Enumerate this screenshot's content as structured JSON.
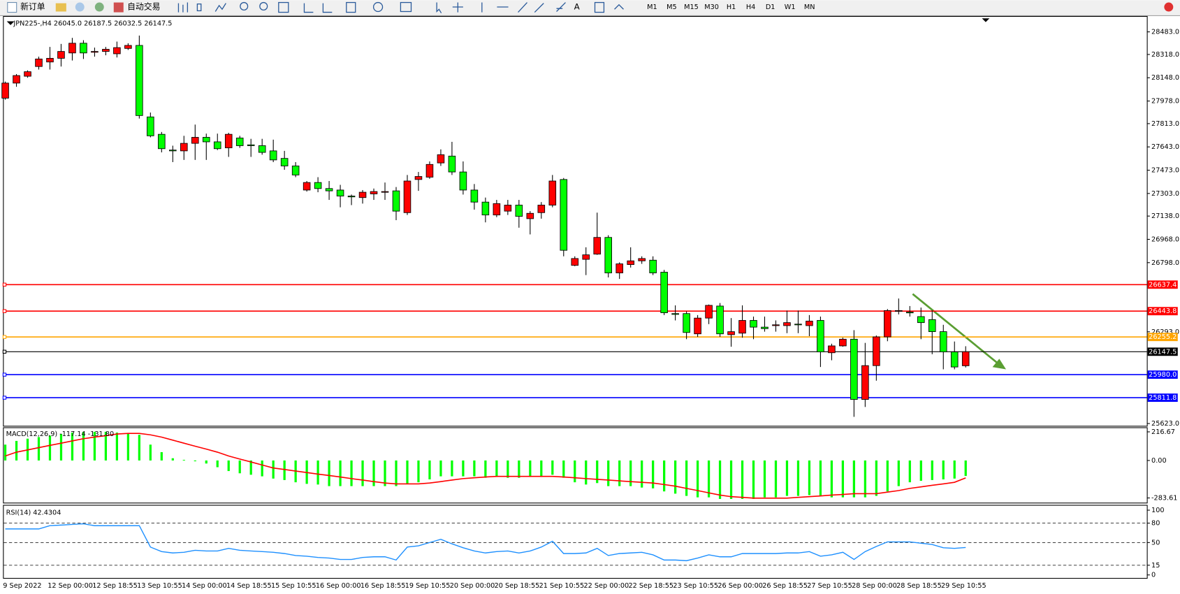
{
  "toolbar": {
    "new_order": "新订单",
    "auto_trade": "自动交易",
    "text_tool": "A",
    "timeframes": [
      "M1",
      "M5",
      "M15",
      "M30",
      "H1",
      "H4",
      "D1",
      "W1",
      "MN"
    ]
  },
  "chart_data": [
    {
      "type": "candlestick",
      "title": "JPN225-,H4  26045.0 26187.5 26032.5 26147.5",
      "up_color": "#ff0000",
      "down_color": "#00ff00",
      "categories": [
        "9 Sep 2022",
        null,
        null,
        null,
        "12 Sep 00:00",
        null,
        null,
        null,
        "12 Sep 18:55",
        null,
        null,
        null,
        "13 Sep 10:55",
        null,
        null,
        null,
        "14 Sep 00:00",
        null,
        null,
        null,
        "14 Sep 18:55",
        null,
        null,
        null,
        "15 Sep 10:55",
        null,
        null,
        null,
        "16 Sep 00:00",
        null,
        null,
        null,
        "16 Sep 18:55",
        null,
        null,
        null,
        "19 Sep 10:55",
        null,
        null,
        null,
        "20 Sep 00:00",
        null,
        null,
        null,
        "20 Sep 18:55",
        null,
        null,
        null,
        "21 Sep 10:55",
        null,
        null,
        null,
        "22 Sep 00:00",
        null,
        null,
        null,
        "22 Sep 18:55",
        null,
        null,
        null,
        "23 Sep 10:55",
        null,
        null,
        null,
        "26 Sep 00:00",
        null,
        null,
        null,
        "26 Sep 18:55",
        null,
        null,
        null,
        "27 Sep 10:55",
        null,
        null,
        null,
        "28 Sep 00:00",
        null,
        null,
        null,
        "28 Sep 18:55",
        null,
        null,
        null,
        "29 Sep 10:55",
        null,
        null
      ],
      "ohlc": [
        [
          27999,
          28120,
          27988,
          28109
        ],
        [
          28109,
          28175,
          28082,
          28164
        ],
        [
          28159,
          28202,
          28148,
          28192
        ],
        [
          28230,
          28302,
          28208,
          28285
        ],
        [
          28263,
          28373,
          28208,
          28290
        ],
        [
          28290,
          28395,
          28230,
          28340
        ],
        [
          28329,
          28439,
          28274,
          28400
        ],
        [
          28400,
          28422,
          28285,
          28329
        ],
        [
          28334,
          28368,
          28302,
          28340
        ],
        [
          28340,
          28373,
          28312,
          28356
        ],
        [
          28323,
          28412,
          28296,
          28368
        ],
        [
          28362,
          28400,
          28351,
          28384
        ],
        [
          28384,
          28456,
          27850,
          27872
        ],
        [
          27862,
          27894,
          27713,
          27724
        ],
        [
          27735,
          27752,
          27603,
          27630
        ],
        [
          27620,
          27652,
          27532,
          27614
        ],
        [
          27614,
          27724,
          27548,
          27669
        ],
        [
          27669,
          27806,
          27548,
          27713
        ],
        [
          27713,
          27740,
          27548,
          27680
        ],
        [
          27680,
          27740,
          27620,
          27630
        ],
        [
          27636,
          27746,
          27570,
          27735
        ],
        [
          27708,
          27724,
          27636,
          27652
        ],
        [
          27658,
          27702,
          27570,
          27652
        ],
        [
          27652,
          27702,
          27586,
          27603
        ],
        [
          27614,
          27696,
          27532,
          27548
        ],
        [
          27559,
          27614,
          27476,
          27504
        ],
        [
          27504,
          27532,
          27422,
          27438
        ],
        [
          27328,
          27394,
          27317,
          27383
        ],
        [
          27383,
          27422,
          27312,
          27339
        ],
        [
          27339,
          27394,
          27256,
          27322
        ],
        [
          27328,
          27366,
          27202,
          27284
        ],
        [
          27284,
          27295,
          27218,
          27278
        ],
        [
          27273,
          27328,
          27229,
          27312
        ],
        [
          27300,
          27339,
          27256,
          27317
        ],
        [
          27312,
          27383,
          27256,
          27317
        ],
        [
          27322,
          27350,
          27108,
          27174
        ],
        [
          27163,
          27438,
          27146,
          27394
        ],
        [
          27405,
          27460,
          27322,
          27427
        ],
        [
          27422,
          27537,
          27410,
          27515
        ],
        [
          27526,
          27625,
          27504,
          27586
        ],
        [
          27576,
          27680,
          27438,
          27460
        ],
        [
          27460,
          27537,
          27295,
          27328
        ],
        [
          27328,
          27372,
          27185,
          27240
        ],
        [
          27240,
          27273,
          27092,
          27146
        ],
        [
          27146,
          27256,
          27130,
          27229
        ],
        [
          27174,
          27256,
          27146,
          27218
        ],
        [
          27218,
          27256,
          27053,
          27136
        ],
        [
          27119,
          27174,
          27004,
          27158
        ],
        [
          27163,
          27240,
          27119,
          27218
        ],
        [
          27218,
          27438,
          27202,
          27394
        ],
        [
          27405,
          27416,
          26844,
          26888
        ],
        [
          26778,
          26844,
          26772,
          26828
        ],
        [
          26822,
          26910,
          26707,
          26855
        ],
        [
          26860,
          27163,
          26855,
          26982
        ],
        [
          26982,
          26998,
          26690,
          26723
        ],
        [
          26723,
          26800,
          26679,
          26789
        ],
        [
          26784,
          26910,
          26762,
          26811
        ],
        [
          26811,
          26844,
          26789,
          26828
        ],
        [
          26816,
          26844,
          26707,
          26723
        ],
        [
          26728,
          26745,
          26415,
          26432
        ],
        [
          26426,
          26486,
          26376,
          26420
        ],
        [
          26426,
          26442,
          26239,
          26288
        ],
        [
          26278,
          26415,
          26256,
          26393
        ],
        [
          26393,
          26492,
          26349,
          26486
        ],
        [
          26481,
          26503,
          26256,
          26278
        ],
        [
          26272,
          26393,
          26184,
          26294
        ],
        [
          26283,
          26486,
          26250,
          26376
        ],
        [
          26376,
          26404,
          26239,
          26327
        ],
        [
          26327,
          26404,
          26294,
          26316
        ],
        [
          26338,
          26376,
          26294,
          26344
        ],
        [
          26338,
          26448,
          26283,
          26360
        ],
        [
          26349,
          26448,
          26283,
          26344
        ],
        [
          26338,
          26415,
          26261,
          26371
        ],
        [
          26376,
          26404,
          26036,
          26146
        ],
        [
          26140,
          26206,
          26085,
          26190
        ],
        [
          26190,
          26250,
          26184,
          26239
        ],
        [
          26239,
          26305,
          25672,
          25799
        ],
        [
          25799,
          26212,
          25744,
          26046
        ],
        [
          26046,
          26266,
          25936,
          26256
        ],
        [
          26256,
          26459,
          26224,
          26448
        ],
        [
          26442,
          26536,
          26420,
          26448
        ],
        [
          26437,
          26481,
          26404,
          26431
        ],
        [
          26404,
          26470,
          26239,
          26360
        ],
        [
          26382,
          26448,
          26129,
          26294
        ],
        [
          26294,
          26344,
          26019,
          26146
        ],
        [
          26146,
          26222,
          26019,
          26036
        ],
        [
          26045.0,
          26187.5,
          26032.5,
          26147.5
        ]
      ],
      "ylim": [
        25606.5,
        28593
      ],
      "yticks": [
        {
          "value": 28483,
          "label": "28483.0"
        },
        {
          "value": 28318,
          "label": "28318.0"
        },
        {
          "value": 28148,
          "label": "28148.0"
        },
        {
          "value": 27978,
          "label": "27978.0"
        },
        {
          "value": 27813,
          "label": "27813.0"
        },
        {
          "value": 27643,
          "label": "27643.0"
        },
        {
          "value": 27473,
          "label": "27473.0"
        },
        {
          "value": 27303,
          "label": "27303.0"
        },
        {
          "value": 27138,
          "label": "27138.0"
        },
        {
          "value": 26968,
          "label": "26968.0"
        },
        {
          "value": 26798,
          "label": "26798.0"
        },
        {
          "value": 26293,
          "label": "26293.0"
        },
        {
          "value": 25623,
          "label": "25623.0"
        }
      ],
      "hlines": [
        {
          "value": 26637.4,
          "label": "26637.4",
          "color": "#ff0000"
        },
        {
          "value": 26443.8,
          "label": "26443.8",
          "color": "#ff0000"
        },
        {
          "value": 26255.2,
          "label": "26255.2",
          "color": "#ffa500"
        },
        {
          "value": 26147.5,
          "label": "26147.5",
          "color": "#000000"
        },
        {
          "value": 25980.0,
          "label": "25980.0",
          "color": "#0000ff"
        },
        {
          "value": 25811.8,
          "label": "25811.8",
          "color": "#0000ff"
        }
      ]
    },
    {
      "type": "combo",
      "title": "MACD(12,26,9) -117.14 -131.80",
      "ylim": [
        -319,
        251
      ],
      "yticks": [
        {
          "value": 216.67,
          "label": "216.67"
        },
        {
          "value": 0,
          "label": "0.00"
        },
        {
          "value": -283.61,
          "label": "-283.61"
        }
      ],
      "series": [
        {
          "type": "bar",
          "color": "#00ff00",
          "values": [
            120,
            148,
            165,
            177,
            188,
            200,
            211,
            217,
            217,
            217,
            211,
            205,
            194,
            120,
            63,
            17,
            5,
            -6,
            -23,
            -51,
            -80,
            -97,
            -108,
            -120,
            -137,
            -148,
            -165,
            -177,
            -182,
            -194,
            -194,
            -194,
            -194,
            -194,
            -194,
            -194,
            -177,
            -165,
            -143,
            -120,
            -120,
            -120,
            -120,
            -131,
            -125,
            -131,
            -131,
            -125,
            -125,
            -108,
            -131,
            -165,
            -182,
            -171,
            -194,
            -194,
            -194,
            -205,
            -211,
            -234,
            -251,
            -268,
            -279,
            -279,
            -291,
            -291,
            -291,
            -291,
            -279,
            -279,
            -268,
            -268,
            -262,
            -268,
            -279,
            -279,
            -279,
            -279,
            -268,
            -234,
            -194,
            -165,
            -154,
            -148,
            -143,
            -137,
            -117.14
          ]
        },
        {
          "type": "line",
          "color": "#ff0000",
          "values": [
            34,
            63,
            80,
            97,
            114,
            131,
            148,
            165,
            177,
            188,
            200,
            205,
            205,
            194,
            177,
            154,
            131,
            108,
            86,
            63,
            34,
            11,
            -11,
            -34,
            -57,
            -68,
            -80,
            -91,
            -103,
            -114,
            -125,
            -137,
            -148,
            -160,
            -171,
            -177,
            -177,
            -177,
            -171,
            -160,
            -148,
            -137,
            -131,
            -125,
            -120,
            -120,
            -120,
            -120,
            -120,
            -120,
            -125,
            -131,
            -137,
            -143,
            -148,
            -154,
            -160,
            -165,
            -171,
            -182,
            -194,
            -211,
            -228,
            -245,
            -262,
            -274,
            -279,
            -285,
            -285,
            -285,
            -285,
            -279,
            -274,
            -268,
            -262,
            -257,
            -251,
            -251,
            -251,
            -239,
            -228,
            -211,
            -200,
            -188,
            -177,
            -165,
            -131.8
          ]
        }
      ]
    },
    {
      "type": "line",
      "title": "RSI(14) 42.4304",
      "ylim": [
        0,
        100
      ],
      "yticks": [
        100,
        80,
        50,
        15,
        0
      ],
      "dashed_levels": [
        80,
        50,
        15
      ],
      "color": "#1e90ff",
      "values": [
        71,
        71,
        71,
        71,
        76,
        77,
        78,
        79,
        76,
        76,
        76,
        76,
        76,
        43,
        36,
        34,
        35,
        38,
        37,
        37,
        41,
        38,
        37,
        36,
        35,
        33,
        30,
        29,
        27,
        26,
        24,
        24,
        27,
        28,
        28,
        23,
        43,
        45,
        50,
        55,
        48,
        42,
        37,
        34,
        36,
        37,
        34,
        37,
        43,
        52,
        33,
        33,
        34,
        41,
        30,
        33,
        34,
        35,
        31,
        23,
        23,
        22,
        26,
        31,
        28,
        28,
        33,
        33,
        33,
        33,
        34,
        34,
        36,
        29,
        31,
        35,
        24,
        36,
        44,
        51,
        51,
        51,
        49,
        47,
        42,
        41,
        42.4304
      ]
    }
  ]
}
